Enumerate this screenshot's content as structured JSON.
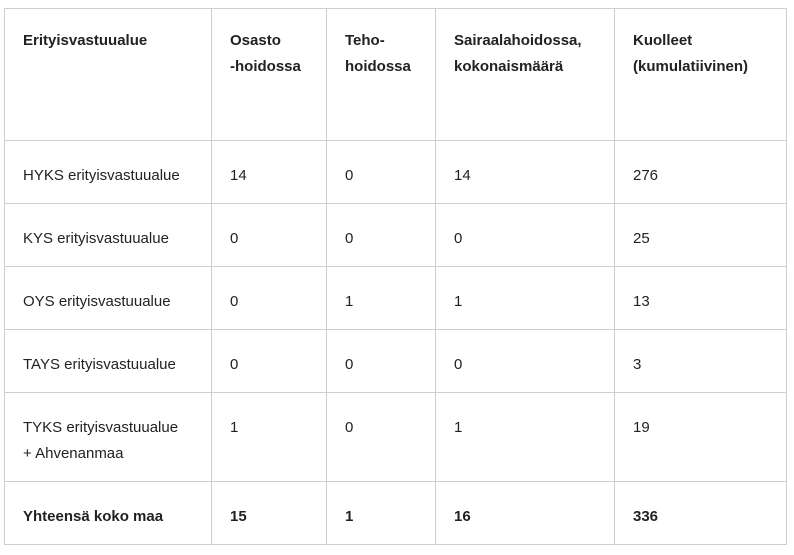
{
  "table": {
    "headers": [
      "Erityisvastuualue",
      "Osasto\n-hoidossa",
      "Teho-\nhoidossa",
      "Sairaalahoidossa,\nkokonaismäärä",
      "Kuolleet\n(kumulatiivinen)"
    ],
    "rows": [
      [
        "HYKS erityisvastuualue",
        "14",
        "0",
        "14",
        "276"
      ],
      [
        "KYS erityisvastuualue",
        "0",
        "0",
        "0",
        "25"
      ],
      [
        "OYS erityisvastuualue",
        "0",
        "1",
        "1",
        "13"
      ],
      [
        "TAYS erityisvastuualue",
        "0",
        "0",
        "0",
        "3"
      ],
      [
        "TYKS erityisvastuualue\n+ Ahvenanmaa",
        "1",
        "0",
        "1",
        "19"
      ]
    ],
    "total": [
      "Yhteensä koko maa",
      "15",
      "1",
      "16",
      "336"
    ]
  }
}
